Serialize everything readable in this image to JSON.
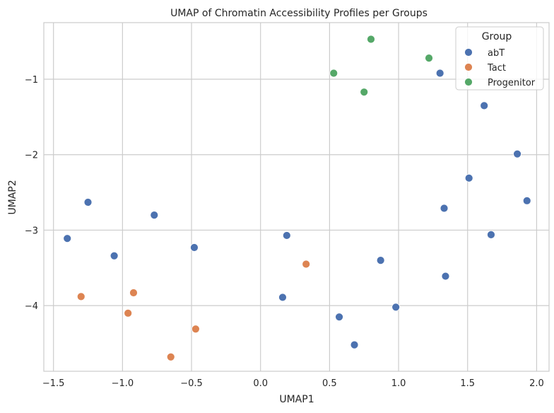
{
  "chart_data": {
    "type": "scatter",
    "title": "UMAP of Chromatin Accessibility Profiles per Groups",
    "xlabel": "UMAP1",
    "ylabel": "UMAP2",
    "xlim": [
      -1.57,
      2.09
    ],
    "ylim": [
      -4.87,
      -0.25
    ],
    "xticks": [
      -1.5,
      -1.0,
      -0.5,
      0.0,
      0.5,
      1.0,
      1.5,
      2.0
    ],
    "xtick_labels": [
      "-1.5",
      "-1.0",
      "-0.5",
      "0.0",
      "0.5",
      "1.0",
      "1.5",
      "2.0"
    ],
    "yticks": [
      -1,
      -2,
      -3,
      -4
    ],
    "ytick_labels": [
      "-1",
      "-2",
      "-3",
      "-4"
    ],
    "grid": true,
    "legend": {
      "title": "Group",
      "placement": "top-right"
    },
    "series": [
      {
        "name": "abT",
        "color": "#4c72b0",
        "points": [
          [
            -1.4,
            -3.11
          ],
          [
            -1.25,
            -2.63
          ],
          [
            -1.06,
            -3.34
          ],
          [
            -0.77,
            -2.8
          ],
          [
            -0.48,
            -3.23
          ],
          [
            0.19,
            -3.07
          ],
          [
            0.16,
            -3.89
          ],
          [
            0.57,
            -4.15
          ],
          [
            0.68,
            -4.52
          ],
          [
            0.87,
            -3.4
          ],
          [
            0.98,
            -4.02
          ],
          [
            1.3,
            -0.92
          ],
          [
            1.33,
            -2.71
          ],
          [
            1.34,
            -3.61
          ],
          [
            1.51,
            -2.31
          ],
          [
            1.62,
            -1.35
          ],
          [
            1.67,
            -3.06
          ],
          [
            1.86,
            -1.99
          ],
          [
            1.93,
            -2.61
          ]
        ]
      },
      {
        "name": "Tact",
        "color": "#dd8452",
        "points": [
          [
            -1.3,
            -3.88
          ],
          [
            -0.92,
            -3.83
          ],
          [
            -0.96,
            -4.1
          ],
          [
            -0.47,
            -4.31
          ],
          [
            -0.65,
            -4.68
          ],
          [
            0.33,
            -3.45
          ]
        ]
      },
      {
        "name": "Progenitor",
        "color": "#55a868",
        "points": [
          [
            0.53,
            -0.92
          ],
          [
            0.8,
            -0.47
          ],
          [
            0.75,
            -1.17
          ],
          [
            1.22,
            -0.72
          ]
        ]
      }
    ]
  }
}
